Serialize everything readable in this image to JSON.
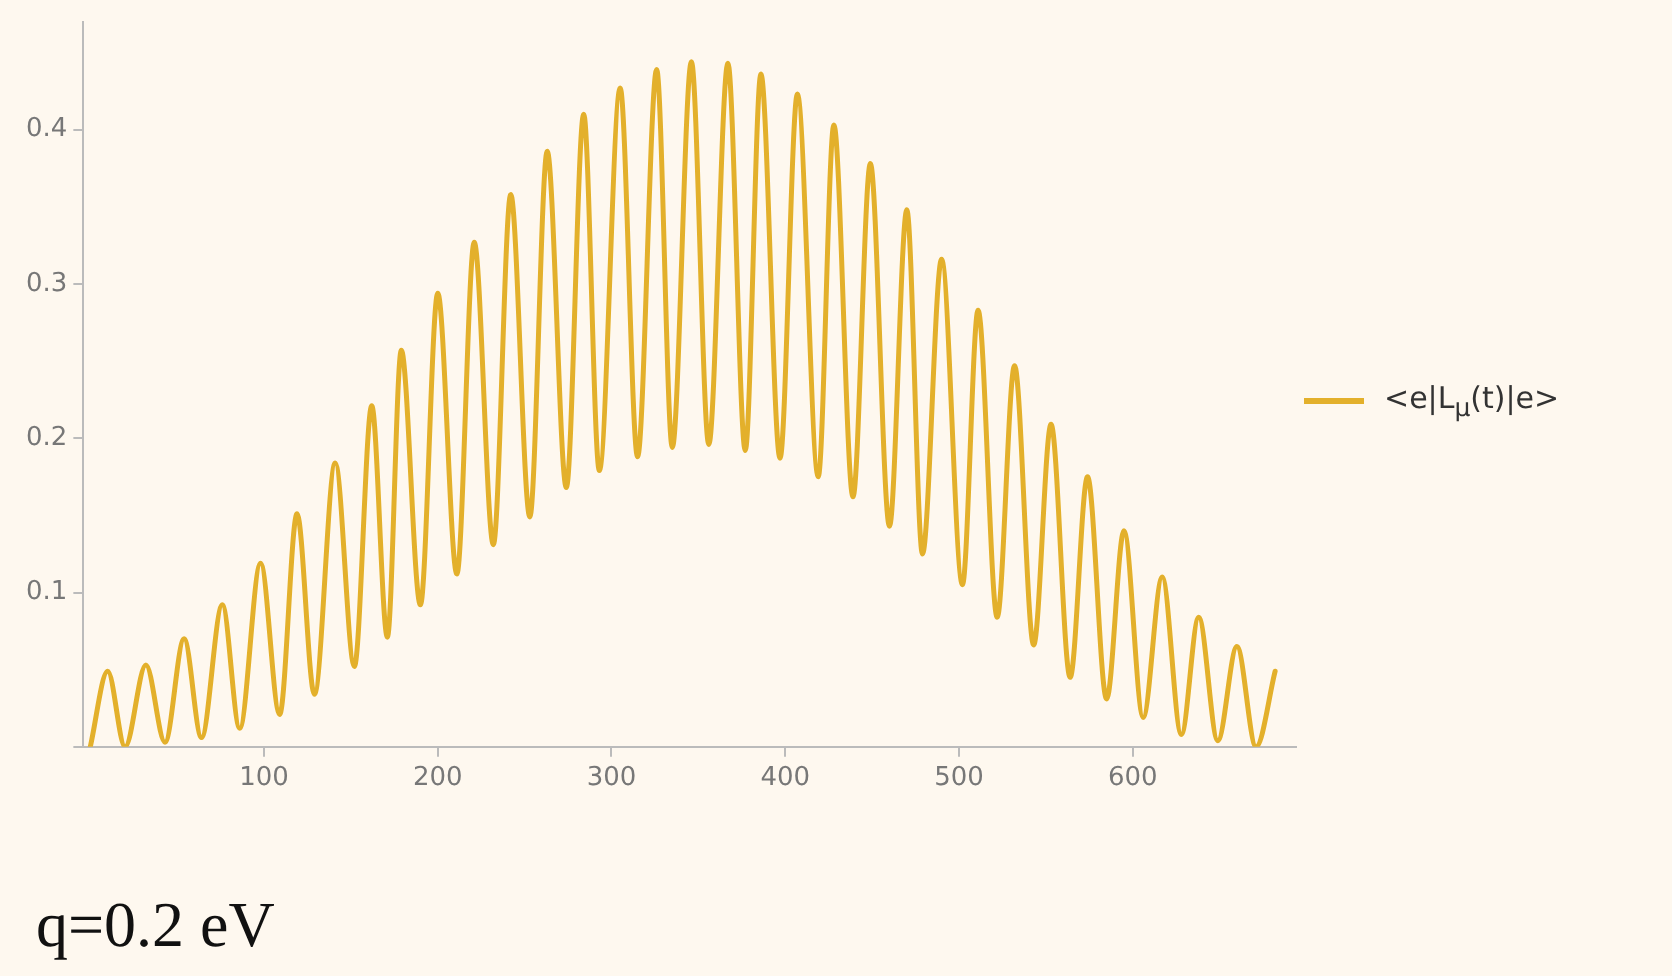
{
  "chart_data": {
    "type": "line",
    "x": [
      0,
      10,
      20,
      32,
      43,
      54,
      64,
      76,
      86,
      98,
      109,
      119,
      129,
      141,
      152,
      162,
      171,
      179,
      190,
      200,
      211,
      221,
      232,
      242,
      253,
      263,
      274,
      284,
      293,
      305,
      315,
      326,
      335,
      346,
      356,
      367,
      377,
      386,
      397,
      407,
      419,
      428,
      439,
      449,
      460,
      470,
      479,
      490,
      502,
      511,
      522,
      532,
      543,
      553,
      564,
      574,
      585,
      595,
      606,
      617,
      628,
      638,
      649,
      660,
      671,
      682
    ],
    "series": [
      {
        "name": "<e|L$_{μ}$(t)|e>",
        "color": "#e3b02b",
        "values": [
          0,
          0.049,
          0,
          0.053,
          0.003,
          0.07,
          0.006,
          0.092,
          0.012,
          0.119,
          0.021,
          0.151,
          0.034,
          0.184,
          0.052,
          0.221,
          0.071,
          0.257,
          0.092,
          0.294,
          0.112,
          0.327,
          0.131,
          0.358,
          0.149,
          0.386,
          0.168,
          0.41,
          0.179,
          0.427,
          0.188,
          0.439,
          0.194,
          0.444,
          0.196,
          0.443,
          0.192,
          0.436,
          0.187,
          0.423,
          0.175,
          0.403,
          0.162,
          0.378,
          0.143,
          0.348,
          0.125,
          0.316,
          0.105,
          0.283,
          0.084,
          0.247,
          0.066,
          0.209,
          0.045,
          0.175,
          0.031,
          0.14,
          0.019,
          0.11,
          0.008,
          0.084,
          0.004,
          0.065,
          0,
          0.049
        ]
      }
    ],
    "xlim": [
      -4,
      694
    ],
    "ylim": [
      0,
      0.47
    ],
    "xticks": [
      100,
      200,
      300,
      400,
      500,
      600
    ],
    "yticks": [
      {
        "value": 0,
        "label": null
      },
      0.1,
      0.2,
      0.3,
      0.4
    ],
    "legend": "right",
    "marker": "none",
    "line_style": "solid",
    "annotations": [
      "q=0.2 eV"
    ]
  }
}
